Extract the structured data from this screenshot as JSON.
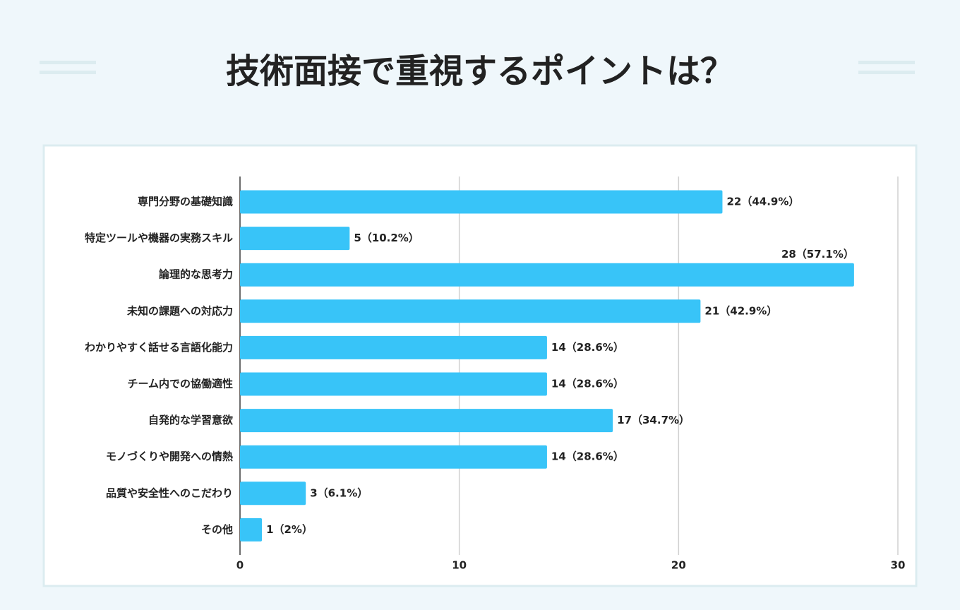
{
  "chart_data": {
    "type": "bar",
    "orientation": "horizontal",
    "title": "技術面接で重視するポイントは？",
    "categories": [
      "専門分野の基礎知識",
      "特定ツールや機器の実務スキル",
      "論理的な思考力",
      "未知の課題への対応力",
      "わかりやすく話せる言語化能力",
      "チーム内での協働適性",
      "自発的な学習意欲",
      "モノづくりや開発への情熱",
      "品質や安全性へのこだわり",
      "その他"
    ],
    "values": [
      22,
      5,
      28,
      21,
      14,
      14,
      17,
      14,
      3,
      1
    ],
    "value_labels": [
      "22（44.9%）",
      "5（10.2%）",
      "28（57.1%）",
      "21（42.9%）",
      "14（28.6%）",
      "14（28.6%）",
      "17（34.7%）",
      "14（28.6%）",
      "3（6.1%）",
      "1（2%）"
    ],
    "color": "#38c4f8",
    "xlim": [
      0,
      30
    ],
    "xticks": [
      0,
      10,
      20,
      30
    ],
    "grid": true
  }
}
